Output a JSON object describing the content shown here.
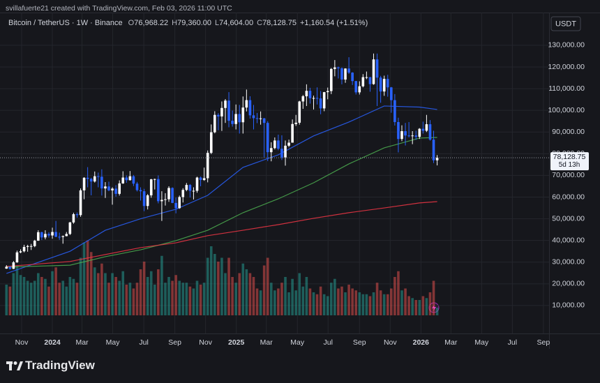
{
  "chart_data": {
    "type": "candlestick",
    "header": "svillafuerte21 created with TradingView.com, Feb 03, 2026 11:00 UTC",
    "symbol": "Bitcoin / TetherUS · 1W · Binance",
    "ohlc_legend": [
      {
        "label": "O",
        "value": "76,968.22"
      },
      {
        "label": "H",
        "value": "79,360.00"
      },
      {
        "label": "L",
        "value": "74,604.00"
      },
      {
        "label": "C",
        "value": "78,128.75"
      }
    ],
    "change": "+1,160.54 (+1.51%)",
    "currency": "USDT",
    "brand": "TradingView",
    "up_color": "#ffffff",
    "down_color": "#2962ff",
    "volume_up_color": "#26a69a",
    "volume_down_color": "#ef5350",
    "grid": true,
    "xlim": [
      -0.25,
      153.7
    ],
    "xticks": [
      {
        "value": 4.3,
        "label": "Nov"
      },
      {
        "value": 13,
        "label": "2024"
      },
      {
        "value": 21.4,
        "label": "Mar"
      },
      {
        "value": 30.1,
        "label": "May"
      },
      {
        "value": 38.9,
        "label": "Jul"
      },
      {
        "value": 47.7,
        "label": "Sep"
      },
      {
        "value": 56.4,
        "label": "Nov"
      },
      {
        "value": 65.1,
        "label": "2025"
      },
      {
        "value": 73.6,
        "label": "Mar"
      },
      {
        "value": 82.4,
        "label": "May"
      },
      {
        "value": 91.1,
        "label": "Jul"
      },
      {
        "value": 100,
        "label": "Sep"
      },
      {
        "value": 108.7,
        "label": "Nov"
      },
      {
        "value": 117.4,
        "label": "2026"
      },
      {
        "value": 125.9,
        "label": "Mar"
      },
      {
        "value": 134.6,
        "label": "May"
      },
      {
        "value": 143.3,
        "label": "Jul"
      },
      {
        "value": 152.1,
        "label": "Sep"
      }
    ],
    "ylim": [
      -2900,
      145100
    ],
    "yticks": [
      {
        "value": 130000,
        "label": "130,000.00"
      },
      {
        "value": 120000,
        "label": "120,000.00"
      },
      {
        "value": 110000,
        "label": "110,000.00"
      },
      {
        "value": 100000,
        "label": "100,000.00"
      },
      {
        "value": 90000,
        "label": "90,000.00"
      },
      {
        "value": 80000,
        "label": "80,000.00"
      },
      {
        "value": 70000,
        "label": "70,000.00"
      },
      {
        "value": 60000,
        "label": "60,000.00"
      },
      {
        "value": 50000,
        "label": "50,000.00"
      },
      {
        "value": 40000,
        "label": "40,000.00"
      },
      {
        "value": 30000,
        "label": "30,000.00"
      },
      {
        "value": 20000,
        "label": "20,000.00"
      },
      {
        "value": 10000,
        "label": "10,000.00"
      }
    ],
    "last_price": {
      "value": 78128.75,
      "label": "78,128.75",
      "countdown": "5d 13h"
    },
    "candles": [
      [
        27000,
        28600,
        26900,
        27900
      ],
      [
        27900,
        28000,
        26500,
        26900
      ],
      [
        26900,
        30500,
        26800,
        29900
      ],
      [
        29900,
        35300,
        29700,
        34500
      ],
      [
        34500,
        35900,
        34100,
        35000
      ],
      [
        35000,
        38000,
        34500,
        37000
      ],
      [
        37000,
        38000,
        34800,
        37400
      ],
      [
        37400,
        38400,
        35600,
        37400
      ],
      [
        37400,
        40300,
        36900,
        39900
      ],
      [
        39900,
        44700,
        39800,
        43800
      ],
      [
        43800,
        44000,
        40200,
        41400
      ],
      [
        41400,
        44700,
        40500,
        43000
      ],
      [
        43000,
        43800,
        41300,
        42300
      ],
      [
        42300,
        45900,
        40800,
        43900
      ],
      [
        43900,
        49000,
        41500,
        41700
      ],
      [
        41700,
        43600,
        40300,
        41600
      ],
      [
        41600,
        42300,
        38500,
        42000
      ],
      [
        42000,
        43900,
        41900,
        43000
      ],
      [
        43000,
        48600,
        42500,
        48300
      ],
      [
        48300,
        52800,
        47700,
        52100
      ],
      [
        52100,
        52900,
        50500,
        51700
      ],
      [
        51700,
        64000,
        50900,
        63100
      ],
      [
        63100,
        69200,
        59000,
        68900
      ],
      [
        68900,
        73800,
        64500,
        68400
      ],
      [
        68400,
        68900,
        60800,
        67200
      ],
      [
        67200,
        71800,
        66700,
        69600
      ],
      [
        69600,
        71300,
        64500,
        69400
      ],
      [
        69400,
        72800,
        60700,
        64000
      ],
      [
        64000,
        66900,
        59600,
        64900
      ],
      [
        64900,
        67100,
        62700,
        63100
      ],
      [
        63100,
        64500,
        56500,
        63900
      ],
      [
        63900,
        65500,
        60200,
        61500
      ],
      [
        61500,
        67700,
        60700,
        66300
      ],
      [
        66300,
        71900,
        66100,
        69000
      ],
      [
        69000,
        70000,
        66600,
        67800
      ],
      [
        67800,
        72000,
        67600,
        69600
      ],
      [
        69600,
        70200,
        65100,
        66200
      ],
      [
        66200,
        67000,
        62600,
        63200
      ],
      [
        63200,
        64500,
        58400,
        62700
      ],
      [
        62700,
        63800,
        53500,
        55900
      ],
      [
        55900,
        61400,
        54300,
        60800
      ],
      [
        60800,
        68400,
        59700,
        68200
      ],
      [
        68200,
        68500,
        63500,
        68300
      ],
      [
        68300,
        70000,
        57100,
        58100
      ],
      [
        58100,
        62700,
        49000,
        58700
      ],
      [
        58700,
        61800,
        56100,
        59000
      ],
      [
        59000,
        65000,
        57800,
        64200
      ],
      [
        64200,
        64500,
        57200,
        57300
      ],
      [
        57300,
        59800,
        52500,
        54900
      ],
      [
        54900,
        60700,
        54600,
        60000
      ],
      [
        60000,
        64100,
        57500,
        63300
      ],
      [
        63300,
        66500,
        62700,
        65600
      ],
      [
        65600,
        66000,
        59800,
        62900
      ],
      [
        62900,
        64500,
        58900,
        62900
      ],
      [
        62900,
        69400,
        62000,
        69000
      ],
      [
        69000,
        69500,
        65000,
        67900
      ],
      [
        67900,
        73600,
        67500,
        68700
      ],
      [
        68700,
        81500,
        66800,
        80400
      ],
      [
        80400,
        93500,
        79800,
        89900
      ],
      [
        89900,
        99600,
        89400,
        97900
      ],
      [
        97900,
        98700,
        90800,
        97200
      ],
      [
        97200,
        104100,
        90500,
        101100
      ],
      [
        101100,
        105200,
        94200,
        104500
      ],
      [
        104500,
        108400,
        92200,
        95200
      ],
      [
        95200,
        99900,
        92500,
        93700
      ],
      [
        93700,
        102700,
        91200,
        98300
      ],
      [
        98300,
        102500,
        89300,
        94500
      ],
      [
        94500,
        106400,
        89300,
        101300
      ],
      [
        101300,
        109600,
        99500,
        104700
      ],
      [
        104700,
        106500,
        96200,
        97700
      ],
      [
        97700,
        102500,
        91200,
        96400
      ],
      [
        96400,
        98800,
        94100,
        96100
      ],
      [
        96100,
        99500,
        93400,
        96300
      ],
      [
        96300,
        96500,
        78300,
        94200
      ],
      [
        94200,
        95000,
        76600,
        80700
      ],
      [
        80700,
        85300,
        76500,
        82600
      ],
      [
        82600,
        87500,
        82000,
        86100
      ],
      [
        86100,
        88800,
        81600,
        82300
      ],
      [
        82300,
        88500,
        77100,
        78300
      ],
      [
        78300,
        86100,
        74500,
        83700
      ],
      [
        83700,
        86500,
        83100,
        85100
      ],
      [
        85100,
        95800,
        85100,
        93700
      ],
      [
        93700,
        97900,
        92800,
        94300
      ],
      [
        94300,
        104400,
        93400,
        104100
      ],
      [
        104100,
        107100,
        100700,
        106500
      ],
      [
        106500,
        112000,
        102000,
        109000
      ],
      [
        109000,
        110400,
        103100,
        105600
      ],
      [
        105600,
        106800,
        100400,
        105700
      ],
      [
        105700,
        110600,
        102700,
        105500
      ],
      [
        105500,
        108900,
        98200,
        100900
      ],
      [
        100900,
        108500,
        99600,
        108400
      ],
      [
        108400,
        110500,
        105100,
        108900
      ],
      [
        108900,
        119500,
        107500,
        119100
      ],
      [
        119100,
        123200,
        115700,
        119800
      ],
      [
        119800,
        120200,
        114700,
        119400
      ],
      [
        119400,
        119800,
        112000,
        114200
      ],
      [
        114200,
        119400,
        112700,
        119300
      ],
      [
        119300,
        124500,
        116800,
        117400
      ],
      [
        117400,
        117600,
        111700,
        113500
      ],
      [
        113500,
        113600,
        107300,
        108300
      ],
      [
        108300,
        113400,
        107300,
        111100
      ],
      [
        111100,
        116700,
        110600,
        115300
      ],
      [
        115300,
        117900,
        114400,
        115300
      ],
      [
        115300,
        115400,
        108600,
        112100
      ],
      [
        112100,
        126200,
        111800,
        123500
      ],
      [
        123500,
        126200,
        102000,
        115100
      ],
      [
        115100,
        115900,
        103500,
        108700
      ],
      [
        108700,
        116000,
        106700,
        114500
      ],
      [
        114500,
        116400,
        106300,
        110600
      ],
      [
        110600,
        110800,
        98900,
        104700
      ],
      [
        104700,
        107500,
        93000,
        94600
      ],
      [
        94600,
        96600,
        80600,
        86800
      ],
      [
        86800,
        93100,
        85800,
        90400
      ],
      [
        90400,
        94200,
        83800,
        88400
      ],
      [
        88400,
        94600,
        87500,
        88200
      ],
      [
        88200,
        90400,
        84400,
        88400
      ],
      [
        88400,
        90600,
        86400,
        87800
      ],
      [
        87800,
        91800,
        86800,
        91500
      ],
      [
        91500,
        94800,
        89300,
        90600
      ],
      [
        90600,
        97900,
        90000,
        93600
      ],
      [
        93600,
        95500,
        86000,
        86500
      ],
      [
        86500,
        90600,
        75700,
        76970
      ],
      [
        76968.22,
        79360,
        74604,
        78128.75
      ]
    ],
    "volume_lim": [
      0,
      400
    ],
    "volume": [
      160,
      150,
      220,
      260,
      210,
      200,
      180,
      170,
      180,
      220,
      200,
      190,
      150,
      230,
      250,
      170,
      180,
      150,
      200,
      190,
      170,
      300,
      380,
      390,
      330,
      250,
      220,
      270,
      220,
      170,
      220,
      200,
      180,
      230,
      160,
      170,
      140,
      170,
      240,
      280,
      200,
      230,
      160,
      240,
      310,
      170,
      200,
      180,
      210,
      180,
      170,
      170,
      150,
      140,
      180,
      160,
      170,
      300,
      360,
      320,
      280,
      300,
      220,
      300,
      200,
      170,
      220,
      270,
      240,
      220,
      200,
      140,
      130,
      260,
      300,
      170,
      130,
      140,
      170,
      200,
      120,
      190,
      130,
      220,
      150,
      200,
      140,
      120,
      110,
      150,
      110,
      100,
      170,
      190,
      140,
      150,
      120,
      160,
      140,
      130,
      120,
      110,
      110,
      100,
      120,
      170,
      130,
      110,
      110,
      140,
      200,
      230,
      130,
      140,
      100,
      90,
      80,
      80,
      100,
      90,
      120,
      180,
      40
    ],
    "moving_averages": [
      {
        "color": "#2962ff",
        "x": [
          0,
          18,
          28,
          38,
          48,
          57,
          67,
          77,
          87,
          97,
          107,
          117,
          122
        ],
        "values": [
          24800,
          35000,
          44700,
          50000,
          54400,
          60800,
          73700,
          79500,
          88200,
          94600,
          102000,
          101500,
          100400
        ]
      },
      {
        "color": "#4caf50",
        "x": [
          0,
          18,
          28,
          38,
          48,
          57,
          67,
          77,
          87,
          97,
          107,
          117,
          122
        ],
        "values": [
          27700,
          28600,
          32500,
          35700,
          39900,
          44700,
          52800,
          59200,
          66600,
          75300,
          82700,
          87200,
          87500
        ]
      },
      {
        "color": "#f23645",
        "x": [
          0,
          18,
          28,
          38,
          48,
          57,
          67,
          77,
          87,
          97,
          107,
          117,
          122
        ],
        "values": [
          28000,
          30300,
          33500,
          36700,
          38900,
          42200,
          44700,
          47300,
          50200,
          52800,
          55000,
          57300,
          57900
        ]
      }
    ]
  }
}
